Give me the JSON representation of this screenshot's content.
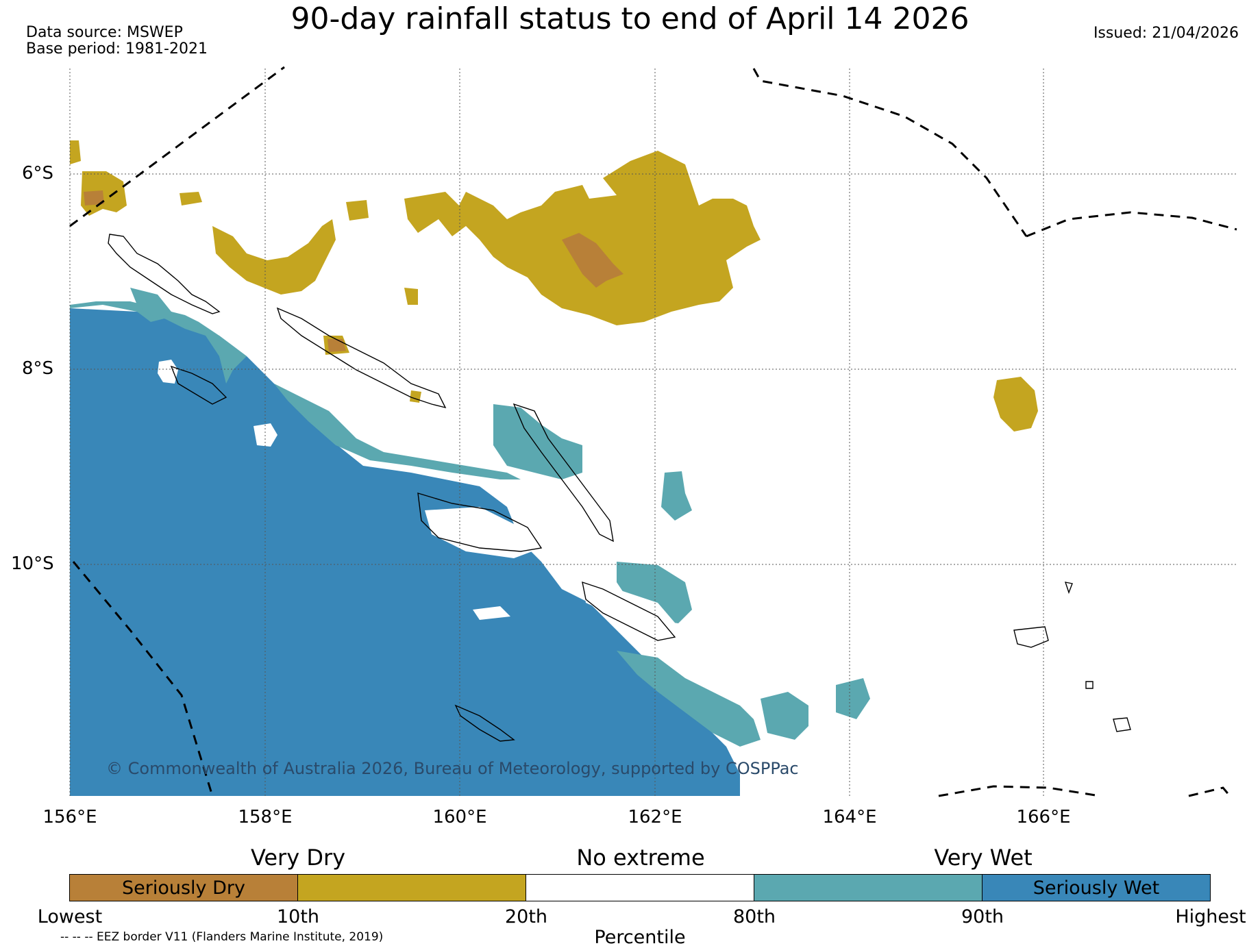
{
  "title": "90-day rainfall status to end of April 14 2026",
  "source_lines": [
    "Data source: MSWEP",
    "Base period: 1981-2021"
  ],
  "issued": "Issued: 21/04/2026",
  "copyright": "© Commonwealth of Australia 2026, Bureau of Meteorology, supported by COSPPac",
  "lat_labels": [
    "6°S",
    "8°S",
    "10°S"
  ],
  "lon_labels": [
    "156°E",
    "158°E",
    "160°E",
    "162°E",
    "164°E",
    "166°E"
  ],
  "colors": {
    "seriously_dry": "#b88038",
    "very_dry": "#c4a520",
    "no_extreme": "#ffffff",
    "very_wet": "#5ba8b0",
    "seriously_wet": "#3987b8",
    "grid": "#555555",
    "coast": "#000000"
  },
  "legend": {
    "group_headers": [
      "Very Dry",
      "No extreme",
      "Very Wet"
    ],
    "segments": [
      {
        "label": "Seriously Dry",
        "color": "#b88038"
      },
      {
        "label": "",
        "color": "#c4a520"
      },
      {
        "label": "",
        "color": "#ffffff"
      },
      {
        "label": "",
        "color": "#5ba8b0"
      },
      {
        "label": "Seriously Wet",
        "color": "#3987b8"
      }
    ],
    "ticks": [
      "Lowest",
      "10th",
      "20th",
      "80th",
      "90th",
      "Highest"
    ],
    "axis_label": "Percentile"
  },
  "eez_note": "-- -- -- EEZ border V11 (Flanders Marine Institute, 2019)"
}
